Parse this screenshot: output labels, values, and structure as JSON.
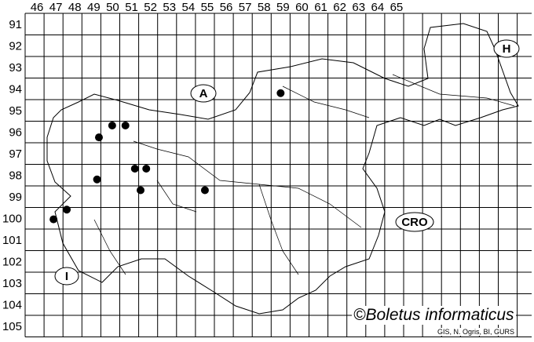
{
  "columns": [
    "46",
    "47",
    "48",
    "49",
    "50",
    "51",
    "52",
    "53",
    "54",
    "55",
    "56",
    "57",
    "58",
    "59",
    "60",
    "61",
    "62",
    "63",
    "64",
    "65"
  ],
  "rows": [
    "91",
    "92",
    "93",
    "94",
    "95",
    "96",
    "97",
    "98",
    "99",
    "100",
    "101",
    "102",
    "103",
    "104",
    "105"
  ],
  "country_labels": [
    {
      "id": "austria",
      "text": "A"
    },
    {
      "id": "hungary",
      "text": "H"
    },
    {
      "id": "croatia",
      "text": "CRO"
    },
    {
      "id": "italy",
      "text": "I"
    }
  ],
  "records": [
    {
      "col": "50",
      "row": "96"
    },
    {
      "col": "51",
      "row": "96"
    },
    {
      "col": "49",
      "row": "96"
    },
    {
      "col": "59",
      "row": "94"
    },
    {
      "col": "51",
      "row": "98"
    },
    {
      "col": "52",
      "row": "98"
    },
    {
      "col": "49",
      "row": "98"
    },
    {
      "col": "52",
      "row": "99"
    },
    {
      "col": "55",
      "row": "99"
    },
    {
      "col": "48",
      "row": "100"
    },
    {
      "col": "47",
      "row": "100"
    }
  ],
  "copyright": "©Boletus informaticus",
  "credit": "GIS, N. Ogris, BI, GURS",
  "colors": {
    "lines": "#000000",
    "dots": "#000000",
    "background": "#ffffff"
  }
}
